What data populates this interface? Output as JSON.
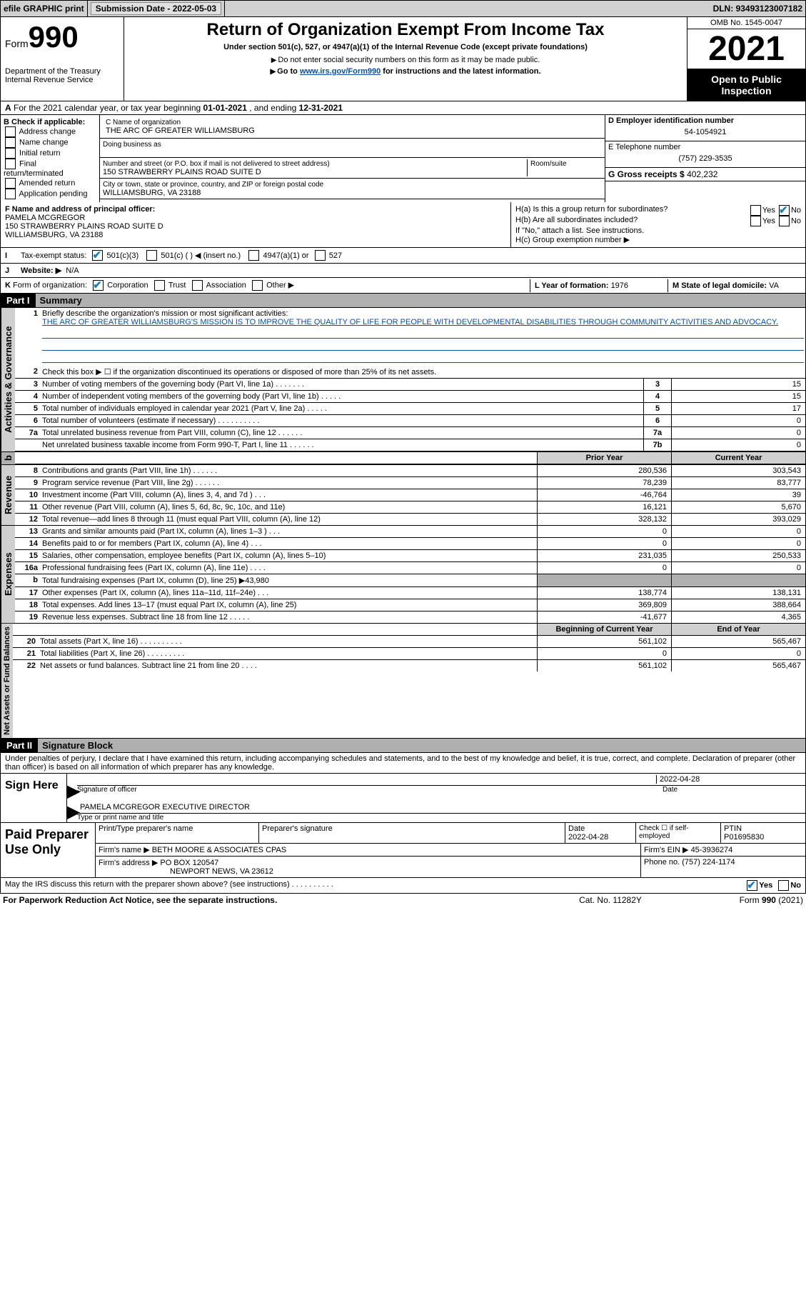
{
  "colors": {
    "link": "#0b4ea2",
    "accent": "#1b7fb5",
    "grey": "#b0b0b0",
    "lightgrey": "#d0d0d0",
    "black": "#000"
  },
  "top": {
    "efile": "efile GRAPHIC print",
    "sub_lbl": "Submission Date - ",
    "sub_date": "2022-05-03",
    "dln_lbl": "DLN: ",
    "dln": "93493123007182"
  },
  "header": {
    "form": "Form",
    "n990": "990",
    "dept": "Department of the Treasury",
    "irs": "Internal Revenue Service",
    "title": "Return of Organization Exempt From Income Tax",
    "sub": "Under section 501(c), 527, or 4947(a)(1) of the Internal Revenue Code (except private foundations)",
    "note1": "Do not enter social security numbers on this form as it may be made public.",
    "note2_a": "Go to ",
    "note2_link": "www.irs.gov/Form990",
    "note2_b": " for instructions and the latest information.",
    "omb": "OMB No. 1545-0047",
    "year": "2021",
    "open": "Open to Public Inspection"
  },
  "lineA": {
    "a": "A",
    "text": "For the 2021 calendar year, or tax year beginning ",
    "begin": "01-01-2021",
    "mid": "   , and ending ",
    "end": "12-31-2021"
  },
  "B": {
    "hdr": "B Check if applicable:",
    "items": [
      "Address change",
      "Name change",
      "Initial return",
      "Final return/terminated",
      "Amended return",
      "Application pending"
    ],
    "C_lbl": "C Name of organization",
    "C_name": "THE ARC OF GREATER WILLIAMSBURG",
    "dba": "Doing business as",
    "addr_lbl": "Number and street (or P.O. box if mail is not delivered to street address)",
    "addr": "150 STRAWBERRY PLAINS ROAD SUITE D",
    "room": "Room/suite",
    "city_lbl": "City or town, state or province, country, and ZIP or foreign postal code",
    "city": "WILLIAMSBURG, VA  23188",
    "D_lbl": "D Employer identification number",
    "D_val": "54-1054921",
    "E_lbl": "E Telephone number",
    "E_val": "(757) 229-3535",
    "G_lbl": "G Gross receipts $ ",
    "G_val": "402,232"
  },
  "F": {
    "F_lbl": "F  Name and address of principal officer:",
    "name": "PAMELA MCGREGOR",
    "addr": "150 STRAWBERRY PLAINS ROAD SUITE D",
    "city": "WILLIAMSBURG, VA  23188",
    "Ha": "H(a)  Is this a group return for subordinates?",
    "Hb": "H(b)  Are all subordinates included?",
    "Hc_note": "If \"No,\" attach a list. See instructions.",
    "Hc": "H(c)  Group exemption number ▶",
    "yes": "Yes",
    "no": "No"
  },
  "I": {
    "lbl": "I",
    "txt": "Tax-exempt status:",
    "o1": "501(c)(3)",
    "o2": "501(c) (  ) ◀ (insert no.)",
    "o3": "4947(a)(1) or",
    "o4": "527"
  },
  "J": {
    "lbl": "J",
    "txt": "Website: ▶",
    "val": "N/A"
  },
  "K": {
    "lbl": "K",
    "txt": "Form of organization:",
    "o1": "Corporation",
    "o2": "Trust",
    "o3": "Association",
    "o4": "Other ▶",
    "L": "L Year of formation: ",
    "L_val": "1976",
    "M": "M State of legal domicile: ",
    "M_val": "VA"
  },
  "part1": {
    "lbl": "Part I",
    "title": "Summary"
  },
  "summary": {
    "line1_lbl": "1",
    "line1": "Briefly describe the organization's mission or most significant activities:",
    "mission": "THE ARC OF GREATER WILLIAMSBURG'S MISSION IS TO IMPROVE THE QUALITY OF LIFE FOR PEOPLE WITH DEVELOPMENTAL DISABILITIES THROUGH COMMUNITY ACTIVITIES AND ADVOCACY.",
    "line2": "Check this box ▶ ☐  if the organization discontinued its operations or disposed of more than 25% of its net assets.",
    "rows": [
      {
        "n": "3",
        "t": "Number of voting members of the governing body (Part VI, line 1a)   .    .    .    .    .    .    .",
        "b": "3",
        "v": "15"
      },
      {
        "n": "4",
        "t": "Number of independent voting members of the governing body (Part VI, line 1b)   .    .    .    .    .",
        "b": "4",
        "v": "15"
      },
      {
        "n": "5",
        "t": "Total number of individuals employed in calendar year 2021 (Part V, line 2a)   .    .    .    .    .",
        "b": "5",
        "v": "17"
      },
      {
        "n": "6",
        "t": "Total number of volunteers (estimate if necessary)    .    .    .    .    .    .    .    .    .    .",
        "b": "6",
        "v": "0"
      },
      {
        "n": "7a",
        "t": "Total unrelated business revenue from Part VIII, column (C), line 12   .    .    .    .    .    .",
        "b": "7a",
        "v": "0"
      },
      {
        "n": "",
        "t": "Net unrelated business taxable income from Form 990-T, Part I, line 11   .    .    .    .    .    .",
        "b": "7b",
        "v": "0"
      }
    ],
    "prior_hdr": "Prior Year",
    "curr_hdr": "Current Year",
    "rev": [
      {
        "n": "8",
        "t": "Contributions and grants (Part VIII, line 1h)   .    .    .    .    .    .",
        "p": "280,536",
        "c": "303,543"
      },
      {
        "n": "9",
        "t": "Program service revenue (Part VIII, line 2g)   .    .    .    .    .    .",
        "p": "78,239",
        "c": "83,777"
      },
      {
        "n": "10",
        "t": "Investment income (Part VIII, column (A), lines 3, 4, and 7d )    .    .    .",
        "p": "-46,764",
        "c": "39"
      },
      {
        "n": "11",
        "t": "Other revenue (Part VIII, column (A), lines 5, 6d, 8c, 9c, 10c, and 11e)",
        "p": "16,121",
        "c": "5,670"
      },
      {
        "n": "12",
        "t": "Total revenue—add lines 8 through 11 (must equal Part VIII, column (A), line 12)",
        "p": "328,132",
        "c": "393,029"
      }
    ],
    "exp": [
      {
        "n": "13",
        "t": "Grants and similar amounts paid (Part IX, column (A), lines 1–3 )   .    .    .",
        "p": "0",
        "c": "0"
      },
      {
        "n": "14",
        "t": "Benefits paid to or for members (Part IX, column (A), line 4)   .    .    .",
        "p": "0",
        "c": "0"
      },
      {
        "n": "15",
        "t": "Salaries, other compensation, employee benefits (Part IX, column (A), lines 5–10)",
        "p": "231,035",
        "c": "250,533"
      },
      {
        "n": "16a",
        "t": "Professional fundraising fees (Part IX, column (A), line 11e)    .    .    .    .",
        "p": "0",
        "c": "0"
      },
      {
        "n": "b",
        "t": "Total fundraising expenses (Part IX, column (D), line 25) ▶43,980",
        "p": "",
        "c": "",
        "grey": true
      },
      {
        "n": "17",
        "t": "Other expenses (Part IX, column (A), lines 11a–11d, 11f–24e)   .    .    .",
        "p": "138,774",
        "c": "138,131"
      },
      {
        "n": "18",
        "t": "Total expenses. Add lines 13–17 (must equal Part IX, column (A), line 25)",
        "p": "369,809",
        "c": "388,664"
      },
      {
        "n": "19",
        "t": "Revenue less expenses. Subtract line 18 from line 12   .    .    .    .    .",
        "p": "-41,677",
        "c": "4,365"
      }
    ],
    "boy_hdr": "Beginning of Current Year",
    "eoy_hdr": "End of Year",
    "net": [
      {
        "n": "20",
        "t": "Total assets (Part X, line 16)   .    .    .    .    .    .    .    .    .    .",
        "p": "561,102",
        "c": "565,467"
      },
      {
        "n": "21",
        "t": "Total liabilities (Part X, line 26)   .    .    .    .    .    .    .    .    .",
        "p": "0",
        "c": "0"
      },
      {
        "n": "22",
        "t": "Net assets or fund balances. Subtract line 21 from line 20   .    .    .    .",
        "p": "561,102",
        "c": "565,467"
      }
    ],
    "side_act": "Activities & Governance",
    "side_rev": "Revenue",
    "side_exp": "Expenses",
    "side_net": "Net Assets or Fund Balances"
  },
  "part2": {
    "lbl": "Part II",
    "title": "Signature Block",
    "decl": "Under penalties of perjury, I declare that I have examined this return, including accompanying schedules and statements, and to the best of my knowledge and belief, it is true, correct, and complete. Declaration of preparer (other than officer) is based on all information of which preparer has any knowledge."
  },
  "sign": {
    "here": "Sign Here",
    "sig": "Signature of officer",
    "date": "Date",
    "date_v": "2022-04-28",
    "name": "PAMELA MCGREGOR  EXECUTIVE DIRECTOR",
    "name_lbl": "Type or print name and title"
  },
  "paid": {
    "title": "Paid Preparer Use Only",
    "pn_lbl": "Print/Type preparer's name",
    "ps_lbl": "Preparer's signature",
    "pd_lbl": "Date",
    "pd": "2022-04-28",
    "chk_lbl": "Check ☐ if self-employed",
    "ptin_lbl": "PTIN",
    "ptin": "P01695830",
    "firm_lbl": "Firm's name    ▶",
    "firm": "BETH MOORE & ASSOCIATES CPAS",
    "ein_lbl": "Firm's EIN ▶",
    "ein": "45-3936274",
    "addr_lbl": "Firm's address ▶",
    "addr": "PO BOX 120547",
    "addr2": "NEWPORT NEWS, VA  23612",
    "phone_lbl": "Phone no. ",
    "phone": "(757) 224-1174"
  },
  "footer": {
    "q": "May the IRS discuss this return with the preparer shown above? (see instructions)   .    .    .    .    .    .    .    .    .    .",
    "yes": "Yes",
    "no": "No",
    "pra": "For Paperwork Reduction Act Notice, see the separate instructions.",
    "cat": "Cat. No. 11282Y",
    "form": "Form 990 (2021)"
  }
}
